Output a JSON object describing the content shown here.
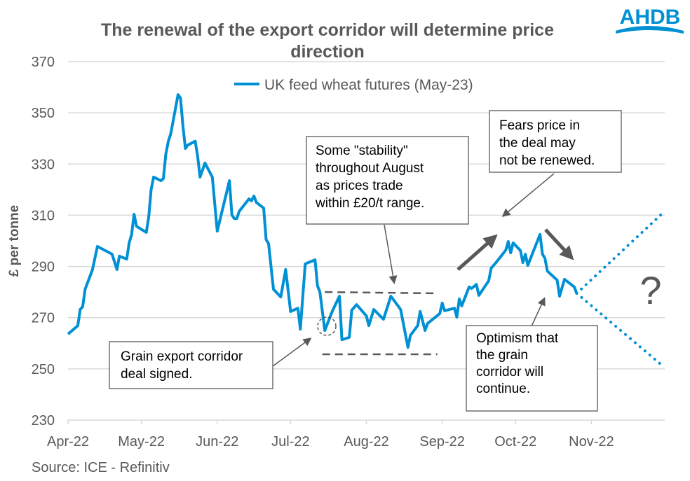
{
  "chart_data": {
    "type": "line",
    "title": "The renewal of the export corridor will determine price direction",
    "title_lines": [
      "The renewal of the export corridor will determine price",
      "direction"
    ],
    "xlabel": "",
    "ylabel": "£ per tonne",
    "ylim": [
      230,
      370
    ],
    "yticks": [
      230,
      250,
      270,
      290,
      310,
      330,
      350,
      370
    ],
    "xlim": [
      "2022-04-01",
      "2022-12-01"
    ],
    "xticks": [
      {
        "date": "2022-04-01",
        "label": "Apr-22"
      },
      {
        "date": "2022-05-01",
        "label": "May-22"
      },
      {
        "date": "2022-06-01",
        "label": "Jun-22"
      },
      {
        "date": "2022-07-01",
        "label": "Jul-22"
      },
      {
        "date": "2022-08-01",
        "label": "Aug-22"
      },
      {
        "date": "2022-09-01",
        "label": "Sep-22"
      },
      {
        "date": "2022-10-01",
        "label": "Oct-22"
      },
      {
        "date": "2022-11-01",
        "label": "Nov-22"
      }
    ],
    "grid": "horizontal",
    "legend_position": "top-center",
    "series": [
      {
        "name": "UK feed wheat futures (May-23)",
        "color": "#0090D4",
        "points": [
          [
            "2022-04-01",
            263.6
          ],
          [
            "2022-04-05",
            266.9
          ],
          [
            "2022-04-06",
            273.2
          ],
          [
            "2022-04-07",
            274.3
          ],
          [
            "2022-04-08",
            281.1
          ],
          [
            "2022-04-11",
            288.8
          ],
          [
            "2022-04-13",
            297.8
          ],
          [
            "2022-04-19",
            294.8
          ],
          [
            "2022-04-21",
            288.8
          ],
          [
            "2022-04-22",
            294.0
          ],
          [
            "2022-04-25",
            292.9
          ],
          [
            "2022-04-26",
            299.2
          ],
          [
            "2022-04-27",
            302.5
          ],
          [
            "2022-04-28",
            310.4
          ],
          [
            "2022-04-29",
            305.7
          ],
          [
            "2022-05-03",
            303.3
          ],
          [
            "2022-05-04",
            309.3
          ],
          [
            "2022-05-05",
            320.2
          ],
          [
            "2022-05-06",
            324.9
          ],
          [
            "2022-05-09",
            323.5
          ],
          [
            "2022-05-10",
            324.3
          ],
          [
            "2022-05-11",
            333.9
          ],
          [
            "2022-05-12",
            338.8
          ],
          [
            "2022-05-13",
            341.8
          ],
          [
            "2022-05-16",
            357.1
          ],
          [
            "2022-05-17",
            355.8
          ],
          [
            "2022-05-18",
            344.8
          ],
          [
            "2022-05-19",
            336.1
          ],
          [
            "2022-05-20",
            337.4
          ],
          [
            "2022-05-23",
            338.9
          ],
          [
            "2022-05-24",
            333.1
          ],
          [
            "2022-05-25",
            324.9
          ],
          [
            "2022-05-27",
            330.4
          ],
          [
            "2022-05-30",
            324.9
          ],
          [
            "2022-06-01",
            303.8
          ],
          [
            "2022-06-06",
            323.5
          ],
          [
            "2022-06-07",
            310.1
          ],
          [
            "2022-06-08",
            308.7
          ],
          [
            "2022-06-09",
            308.7
          ],
          [
            "2022-06-10",
            311.5
          ],
          [
            "2022-06-14",
            316.4
          ],
          [
            "2022-06-15",
            315.6
          ],
          [
            "2022-06-16",
            317.5
          ],
          [
            "2022-06-17",
            315.0
          ],
          [
            "2022-06-20",
            312.8
          ],
          [
            "2022-06-21",
            300.5
          ],
          [
            "2022-06-22",
            298.9
          ],
          [
            "2022-06-24",
            281.1
          ],
          [
            "2022-06-27",
            278.1
          ],
          [
            "2022-06-29",
            288.8
          ],
          [
            "2022-07-01",
            272.4
          ],
          [
            "2022-07-04",
            273.7
          ],
          [
            "2022-07-05",
            265.5
          ],
          [
            "2022-07-07",
            291.0
          ],
          [
            "2022-07-11",
            292.6
          ],
          [
            "2022-07-12",
            282.5
          ],
          [
            "2022-07-13",
            280.0
          ],
          [
            "2022-07-15",
            265.0
          ],
          [
            "2022-07-18",
            272.4
          ],
          [
            "2022-07-21",
            278.4
          ],
          [
            "2022-07-22",
            261.4
          ],
          [
            "2022-07-25",
            262.3
          ],
          [
            "2022-07-26",
            272.9
          ],
          [
            "2022-07-28",
            275.1
          ],
          [
            "2022-08-01",
            270.7
          ],
          [
            "2022-08-02",
            266.9
          ],
          [
            "2022-08-04",
            273.2
          ],
          [
            "2022-08-08",
            269.4
          ],
          [
            "2022-08-11",
            278.4
          ],
          [
            "2022-08-15",
            273.2
          ],
          [
            "2022-08-18",
            258.4
          ],
          [
            "2022-08-19",
            263.1
          ],
          [
            "2022-08-22",
            266.9
          ],
          [
            "2022-08-23",
            272.4
          ],
          [
            "2022-08-25",
            265.0
          ],
          [
            "2022-08-26",
            267.7
          ],
          [
            "2022-08-31",
            271.6
          ],
          [
            "2022-09-01",
            275.7
          ],
          [
            "2022-09-02",
            272.7
          ],
          [
            "2022-09-06",
            273.7
          ],
          [
            "2022-09-07",
            270.2
          ],
          [
            "2022-09-08",
            277.3
          ],
          [
            "2022-09-09",
            274.6
          ],
          [
            "2022-09-12",
            282.0
          ],
          [
            "2022-09-13",
            281.4
          ],
          [
            "2022-09-15",
            283.0
          ],
          [
            "2022-09-16",
            278.7
          ],
          [
            "2022-09-20",
            284.4
          ],
          [
            "2022-09-21",
            289.3
          ],
          [
            "2022-09-23",
            291.5
          ],
          [
            "2022-09-27",
            296.4
          ],
          [
            "2022-09-28",
            299.7
          ],
          [
            "2022-09-29",
            295.3
          ],
          [
            "2022-09-30",
            299.2
          ],
          [
            "2022-10-03",
            296.2
          ],
          [
            "2022-10-04",
            291.5
          ],
          [
            "2022-10-05",
            294.8
          ],
          [
            "2022-10-06",
            290.4
          ],
          [
            "2022-10-11",
            302.5
          ],
          [
            "2022-10-12",
            294.8
          ],
          [
            "2022-10-13",
            293.2
          ],
          [
            "2022-10-14",
            288.2
          ],
          [
            "2022-10-18",
            284.7
          ],
          [
            "2022-10-19",
            278.4
          ],
          [
            "2022-10-21",
            285.0
          ],
          [
            "2022-10-25",
            282.0
          ],
          [
            "2022-10-26",
            279.5
          ]
        ]
      }
    ],
    "scenarios": [
      {
        "style": "dotted",
        "color": "#0090D4",
        "points": [
          [
            "2022-10-26",
            279.5
          ],
          [
            "2022-11-30",
            310.7
          ]
        ]
      },
      {
        "style": "dotted",
        "color": "#0090D4",
        "points": [
          [
            "2022-10-26",
            279.5
          ],
          [
            "2022-11-30",
            251.3
          ]
        ]
      }
    ],
    "range_lines": [
      {
        "style": "dashed",
        "color": "#595959",
        "from": "2022-07-15",
        "to": "2022-08-30",
        "values": [
          280,
          279.5
        ]
      },
      {
        "style": "dashed",
        "color": "#595959",
        "from": "2022-07-14",
        "to": "2022-08-30",
        "values": [
          255.7,
          255.7
        ]
      }
    ],
    "annotations": [
      {
        "id": "stability",
        "lines": [
          "Some \"stability\"",
          "throughout August",
          "as prices trade",
          "within £20/t range."
        ]
      },
      {
        "id": "fears",
        "lines": [
          "Fears price in",
          "the deal may",
          "not be renewed."
        ]
      },
      {
        "id": "signed",
        "lines": [
          "Grain export corridor",
          "deal signed."
        ]
      },
      {
        "id": "optimism",
        "lines": [
          "Optimism that",
          "the grain",
          "corridor will",
          "continue."
        ]
      }
    ],
    "question_mark": "?",
    "source": "Source: ICE - Refinitiv",
    "logo_text": "AHDB",
    "colors": {
      "text": "#595959",
      "line": "#0090D4",
      "grid": "#D9D9D9",
      "logo": "#0090D4"
    }
  }
}
